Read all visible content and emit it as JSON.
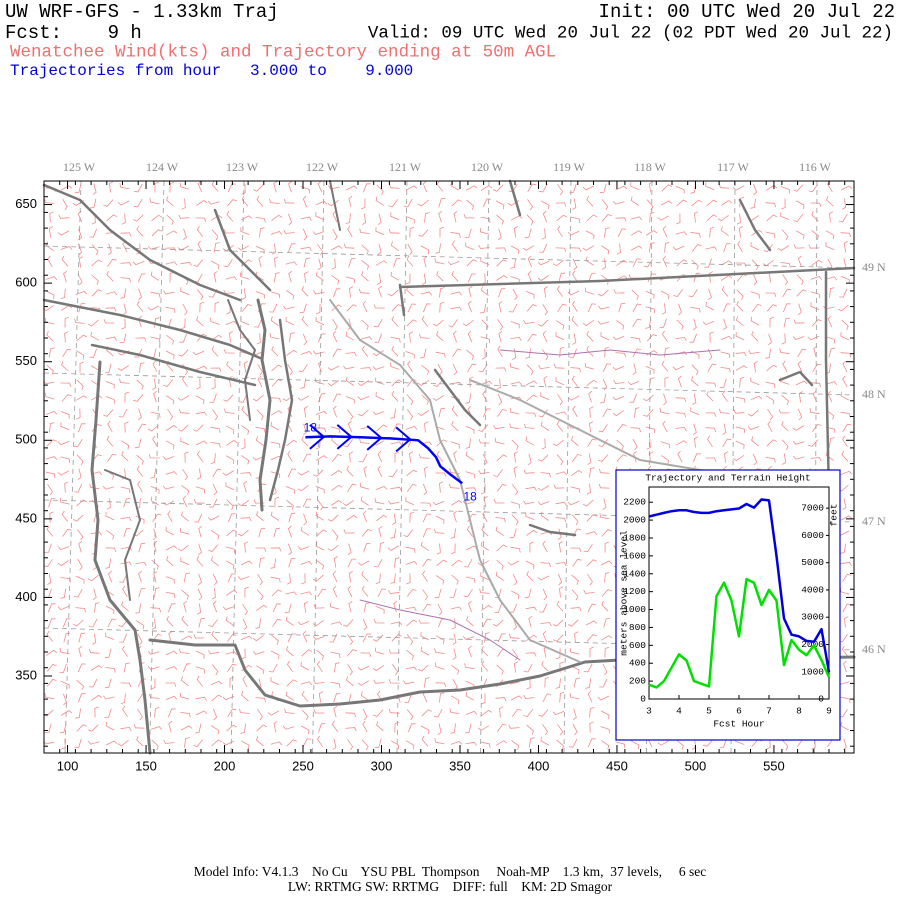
{
  "header": {
    "title": "UW WRF-GFS - 1.33km Traj",
    "init": "Init: 00 UTC Wed 20 Jul 22",
    "forecast": "Fcst:    9 h",
    "valid": "Valid: 09 UTC Wed 20 Jul 22 (02 PDT Wed 20 Jul 22)",
    "subtitle": "Wenatchee Wind(kts) and Trajectory ending at 50m AGL",
    "trajectory_range": "Trajectories from hour   3.000 to    9.000"
  },
  "map": {
    "xlim": [
      85,
      601
    ],
    "ylim": [
      301,
      665
    ],
    "xticks": [
      100,
      150,
      200,
      250,
      300,
      350,
      400,
      450,
      500,
      550
    ],
    "yticks": [
      350,
      400,
      450,
      500,
      550,
      600,
      650
    ],
    "lon_labels": [
      "125 W",
      "124 W",
      "123 W",
      "122 W",
      "121 W",
      "120 W",
      "119 W",
      "118 W",
      "117 W",
      "116 W"
    ],
    "lat_labels": [
      "49 N",
      "48 N",
      "47 N",
      "46 N"
    ],
    "trajectory": {
      "color": "#0000ff",
      "start_label": "18",
      "end_label": "18",
      "x": [
        251.5,
        267.4,
        286.5,
        305.5,
        323.4,
        329.7,
        334.8,
        337.4,
        343.7,
        351.4
      ],
      "y": [
        501.9,
        502.5,
        501.9,
        501.2,
        500,
        494.9,
        489.2,
        483.5,
        478.4,
        472.7
      ]
    }
  },
  "chart_data": {
    "type": "line",
    "title": "Trajectory and Terrain Height",
    "x_label": "Fcst Hour",
    "y_label": "meters above sea level",
    "y2_label": "feet",
    "x": [
      3,
      3.25,
      3.5,
      3.75,
      4,
      4.25,
      4.5,
      4.75,
      5,
      5.25,
      5.5,
      5.75,
      6,
      6.25,
      6.5,
      6.75,
      7,
      7.25,
      7.5,
      7.75,
      8,
      8.25,
      8.5,
      8.75,
      9
    ],
    "xlim": [
      3,
      9
    ],
    "xticks": [
      3,
      4,
      5,
      6,
      7,
      8,
      9
    ],
    "ylim": [
      0,
      2370
    ],
    "yticks": [
      0,
      200,
      400,
      600,
      800,
      1000,
      1200,
      1400,
      1600,
      1800,
      2000,
      2200
    ],
    "y2lim": [
      0,
      7776
    ],
    "y2ticks": [
      0,
      1000,
      2000,
      3000,
      4000,
      5000,
      6000,
      7000
    ],
    "series": [
      {
        "color": "#0000dd",
        "values": [
          2040,
          2060,
          2080,
          2100,
          2110,
          2110,
          2090,
          2080,
          2080,
          2100,
          2110,
          2120,
          2130,
          2180,
          2140,
          2230,
          2220,
          1600,
          900,
          720,
          700,
          650,
          640,
          780,
          300
        ]
      },
      {
        "color": "#00e000",
        "values": [
          160,
          130,
          200,
          350,
          500,
          430,
          200,
          170,
          140,
          1150,
          1300,
          1100,
          700,
          1340,
          1300,
          1050,
          1220,
          1100,
          380,
          660,
          550,
          490,
          600,
          435,
          245
        ]
      }
    ]
  },
  "footer": {
    "line1": "Model Info: V4.1.3    No Cu    YSU PBL  Thompson     Noah-MP    1.3 km,  37 levels,     6 sec",
    "line2": "LW: RRTMG SW: RRTMG    DIFF: full    KM: 2D Smagor"
  }
}
